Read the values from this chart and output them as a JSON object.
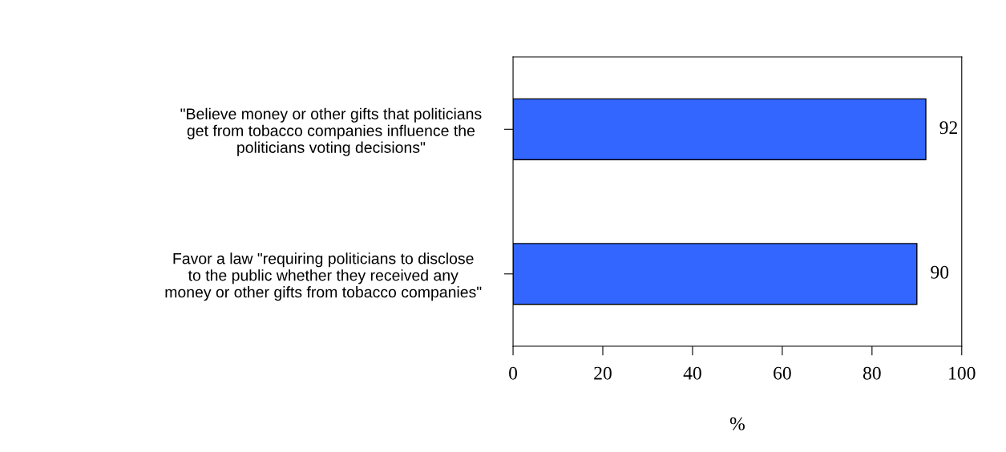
{
  "chart_data": {
    "type": "bar",
    "orientation": "horizontal",
    "categories": [
      "\"Believe money or other gifts that politicians\nget from tobacco companies influence the\npoliticians voting decisions\"",
      "Favor a law \"requiring politicians to disclose\nto the public whether they received any\nmoney or other gifts from tobacco companies\""
    ],
    "values": [
      92,
      90
    ],
    "color": "#3366ff",
    "xlim": [
      0,
      100
    ],
    "xticks": [
      0,
      20,
      40,
      60,
      80,
      100
    ],
    "xlabel": "%",
    "data_labels": true,
    "grid": false,
    "legend": false
  }
}
